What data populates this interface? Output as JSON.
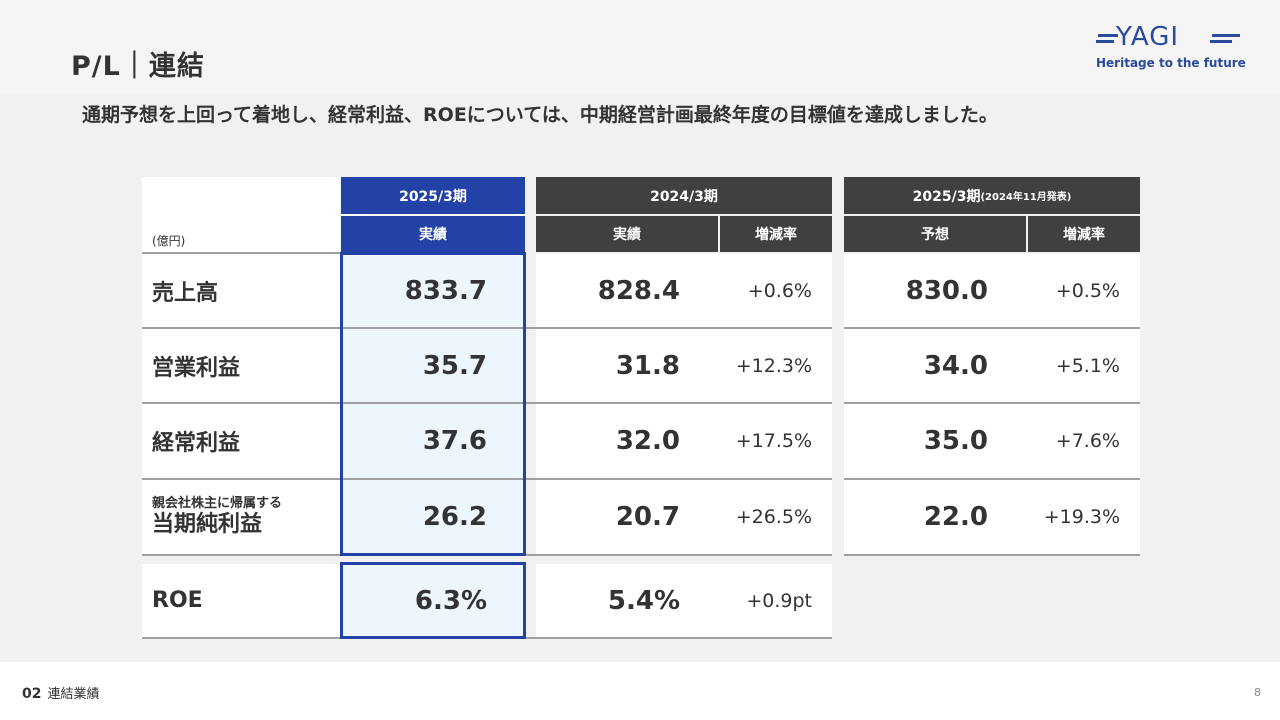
{
  "header": {
    "title": "P/L｜連結",
    "subtitle": "通期予想を上回って着地し、経常利益、ROEについては、中期経営計画最終年度の目標値を達成しました。"
  },
  "logo": {
    "name": "YAGI",
    "tagline": "Heritage to the future",
    "color": "#2b4a9c"
  },
  "table": {
    "unit": "(億円)",
    "columns": {
      "fy2025": {
        "title": "2025/3期",
        "sub": "実績"
      },
      "fy2024": {
        "title": "2024/3期",
        "sub_actual": "実績",
        "sub_change": "増減率"
      },
      "forecast": {
        "title": "2025/3期",
        "title_note": "(2024年11月発表)",
        "sub_forecast": "予想",
        "sub_change": "増減率"
      }
    },
    "rows": [
      {
        "label": "売上高",
        "fy2025": "833.7",
        "fy2024": "828.4",
        "fy2024_change": "+0.6%",
        "forecast": "830.0",
        "forecast_change": "+0.5%"
      },
      {
        "label": "営業利益",
        "fy2025": "35.7",
        "fy2024": "31.8",
        "fy2024_change": "+12.3%",
        "forecast": "34.0",
        "forecast_change": "+5.1%"
      },
      {
        "label": "経常利益",
        "fy2025": "37.6",
        "fy2024": "32.0",
        "fy2024_change": "+17.5%",
        "forecast": "35.0",
        "forecast_change": "+7.6%"
      },
      {
        "label_pre": "親会社株主に帰属する",
        "label": "当期純利益",
        "fy2025": "26.2",
        "fy2024": "20.7",
        "fy2024_change": "+26.5%",
        "forecast": "22.0",
        "forecast_change": "+19.3%"
      }
    ],
    "roe": {
      "label": "ROE",
      "fy2025": "6.3%",
      "fy2024": "5.4%",
      "fy2024_change": "+0.9pt"
    },
    "accent_color": "#2342a8"
  },
  "footer": {
    "section_number": "02",
    "section_name": "連結業績",
    "page_number": "8"
  }
}
